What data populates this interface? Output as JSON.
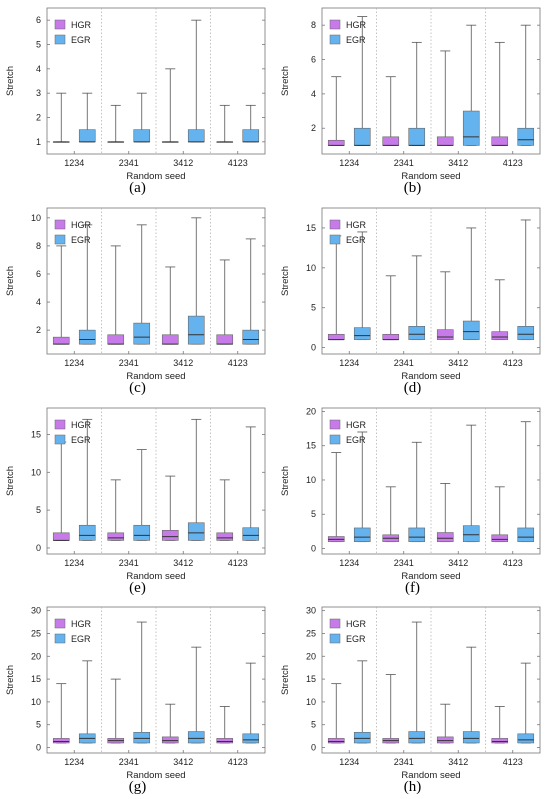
{
  "colors": {
    "HGR": "#c77be8",
    "EGR": "#65b3ee",
    "median": "#333333",
    "whisker": "#555555",
    "grid": "#aaaaaa"
  },
  "chart_data": [
    {
      "label": "(a)",
      "type": "boxplot",
      "xlabel": "Random seed",
      "ylabel": "Stretch",
      "categories": [
        "1234",
        "2341",
        "3412",
        "4123"
      ],
      "ylim": [
        0.5,
        6.5
      ],
      "yticks": [
        1,
        2,
        3,
        4,
        5,
        6
      ],
      "legend": "top-left",
      "grid": "vertical dotted",
      "series": [
        {
          "name": "HGR",
          "boxes": [
            {
              "min": 1,
              "q1": 1,
              "median": 1,
              "q3": 1,
              "max": 3
            },
            {
              "min": 1,
              "q1": 1,
              "median": 1,
              "q3": 1,
              "max": 2.5
            },
            {
              "min": 1,
              "q1": 1,
              "median": 1,
              "q3": 1,
              "max": 4
            },
            {
              "min": 1,
              "q1": 1,
              "median": 1,
              "q3": 1,
              "max": 2.5
            }
          ]
        },
        {
          "name": "EGR",
          "boxes": [
            {
              "min": 1,
              "q1": 1,
              "median": 1,
              "q3": 1.5,
              "max": 3
            },
            {
              "min": 1,
              "q1": 1,
              "median": 1,
              "q3": 1.5,
              "max": 3
            },
            {
              "min": 1,
              "q1": 1,
              "median": 1,
              "q3": 1.5,
              "max": 6
            },
            {
              "min": 1,
              "q1": 1,
              "median": 1,
              "q3": 1.5,
              "max": 2.5
            }
          ]
        }
      ]
    },
    {
      "label": "(b)",
      "type": "boxplot",
      "xlabel": "Random seed",
      "ylabel": "Stretch",
      "categories": [
        "1234",
        "2341",
        "3412",
        "4123"
      ],
      "ylim": [
        0.5,
        9
      ],
      "yticks": [
        2,
        4,
        6,
        8
      ],
      "legend": "top-left",
      "grid": "vertical dotted",
      "series": [
        {
          "name": "HGR",
          "boxes": [
            {
              "min": 1,
              "q1": 1,
              "median": 1,
              "q3": 1.3,
              "max": 5
            },
            {
              "min": 1,
              "q1": 1,
              "median": 1,
              "q3": 1.5,
              "max": 5
            },
            {
              "min": 1,
              "q1": 1,
              "median": 1,
              "q3": 1.5,
              "max": 6.5
            },
            {
              "min": 1,
              "q1": 1,
              "median": 1,
              "q3": 1.5,
              "max": 7
            }
          ]
        },
        {
          "name": "EGR",
          "boxes": [
            {
              "min": 1,
              "q1": 1,
              "median": 1,
              "q3": 2,
              "max": 8.5
            },
            {
              "min": 1,
              "q1": 1,
              "median": 1,
              "q3": 2,
              "max": 7
            },
            {
              "min": 1,
              "q1": 1,
              "median": 1.5,
              "q3": 3,
              "max": 8
            },
            {
              "min": 1,
              "q1": 1,
              "median": 1.33,
              "q3": 2,
              "max": 8
            }
          ]
        }
      ]
    },
    {
      "label": "(c)",
      "type": "boxplot",
      "xlabel": "Random seed",
      "ylabel": "Stretch",
      "categories": [
        "1234",
        "2341",
        "3412",
        "4123"
      ],
      "ylim": [
        0.3,
        10.7
      ],
      "yticks": [
        2,
        4,
        6,
        8,
        10
      ],
      "legend": "top-left",
      "grid": "vertical dotted",
      "series": [
        {
          "name": "HGR",
          "boxes": [
            {
              "min": 1,
              "q1": 1,
              "median": 1,
              "q3": 1.5,
              "max": 8
            },
            {
              "min": 1,
              "q1": 1,
              "median": 1,
              "q3": 1.67,
              "max": 8
            },
            {
              "min": 1,
              "q1": 1,
              "median": 1,
              "q3": 1.67,
              "max": 6.5
            },
            {
              "min": 1,
              "q1": 1,
              "median": 1,
              "q3": 1.67,
              "max": 7
            }
          ]
        },
        {
          "name": "EGR",
          "boxes": [
            {
              "min": 1,
              "q1": 1,
              "median": 1.33,
              "q3": 2,
              "max": 9.5
            },
            {
              "min": 1,
              "q1": 1,
              "median": 1.5,
              "q3": 2.5,
              "max": 9.5
            },
            {
              "min": 1,
              "q1": 1,
              "median": 1.67,
              "q3": 3,
              "max": 10
            },
            {
              "min": 1,
              "q1": 1,
              "median": 1.33,
              "q3": 2,
              "max": 8.5
            }
          ]
        }
      ]
    },
    {
      "label": "(d)",
      "type": "boxplot",
      "xlabel": "Random seed",
      "ylabel": "Stretch",
      "categories": [
        "1234",
        "2341",
        "3412",
        "4123"
      ],
      "ylim": [
        -0.8,
        17.5
      ],
      "yticks": [
        0,
        5,
        10,
        15
      ],
      "legend": "top-left",
      "grid": "vertical dotted",
      "series": [
        {
          "name": "HGR",
          "boxes": [
            {
              "min": 1,
              "q1": 1,
              "median": 1,
              "q3": 1.67,
              "max": 14
            },
            {
              "min": 1,
              "q1": 1,
              "median": 1,
              "q3": 1.67,
              "max": 9
            },
            {
              "min": 1,
              "q1": 1,
              "median": 1.33,
              "q3": 2.25,
              "max": 9.5
            },
            {
              "min": 1,
              "q1": 1,
              "median": 1.33,
              "q3": 2,
              "max": 8.5
            }
          ]
        },
        {
          "name": "EGR",
          "boxes": [
            {
              "min": 1,
              "q1": 1,
              "median": 1.5,
              "q3": 2.5,
              "max": 14.5
            },
            {
              "min": 1,
              "q1": 1,
              "median": 1.67,
              "q3": 2.67,
              "max": 11.5
            },
            {
              "min": 1,
              "q1": 1,
              "median": 2,
              "q3": 3.33,
              "max": 15
            },
            {
              "min": 1,
              "q1": 1,
              "median": 1.67,
              "q3": 2.67,
              "max": 16
            }
          ]
        }
      ]
    },
    {
      "label": "(e)",
      "type": "boxplot",
      "xlabel": "Random seed",
      "ylabel": "Stretch",
      "categories": [
        "1234",
        "2341",
        "3412",
        "4123"
      ],
      "ylim": [
        -0.8,
        18.5
      ],
      "yticks": [
        0,
        5,
        10,
        15
      ],
      "legend": "top-left",
      "grid": "vertical dotted",
      "series": [
        {
          "name": "HGR",
          "boxes": [
            {
              "min": 1,
              "q1": 1,
              "median": 1,
              "q3": 2,
              "max": 14
            },
            {
              "min": 1,
              "q1": 1,
              "median": 1.33,
              "q3": 2,
              "max": 9
            },
            {
              "min": 1,
              "q1": 1,
              "median": 1.5,
              "q3": 2.33,
              "max": 9.5
            },
            {
              "min": 1,
              "q1": 1,
              "median": 1.33,
              "q3": 2,
              "max": 9
            }
          ]
        },
        {
          "name": "EGR",
          "boxes": [
            {
              "min": 1,
              "q1": 1,
              "median": 1.67,
              "q3": 3,
              "max": 17
            },
            {
              "min": 1,
              "q1": 1,
              "median": 1.67,
              "q3": 3,
              "max": 13
            },
            {
              "min": 1,
              "q1": 1,
              "median": 2,
              "q3": 3.33,
              "max": 17
            },
            {
              "min": 1,
              "q1": 1,
              "median": 1.67,
              "q3": 2.67,
              "max": 16
            }
          ]
        }
      ]
    },
    {
      "label": "(f)",
      "type": "boxplot",
      "xlabel": "Random seed",
      "ylabel": "Stretch",
      "categories": [
        "1234",
        "2341",
        "3412",
        "4123"
      ],
      "ylim": [
        -0.8,
        20.5
      ],
      "yticks": [
        0,
        5,
        10,
        15,
        20
      ],
      "legend": "top-left",
      "grid": "vertical dotted",
      "series": [
        {
          "name": "HGR",
          "boxes": [
            {
              "min": 1,
              "q1": 1,
              "median": 1.33,
              "q3": 1.75,
              "max": 14
            },
            {
              "min": 1,
              "q1": 1,
              "median": 1.5,
              "q3": 2,
              "max": 9
            },
            {
              "min": 1,
              "q1": 1,
              "median": 1.5,
              "q3": 2.33,
              "max": 9.5
            },
            {
              "min": 1,
              "q1": 1,
              "median": 1.33,
              "q3": 2,
              "max": 9
            }
          ]
        },
        {
          "name": "EGR",
          "boxes": [
            {
              "min": 1,
              "q1": 1,
              "median": 1.67,
              "q3": 3,
              "max": 17
            },
            {
              "min": 1,
              "q1": 1,
              "median": 1.67,
              "q3": 3,
              "max": 15.5
            },
            {
              "min": 1,
              "q1": 1,
              "median": 2,
              "q3": 3.33,
              "max": 18
            },
            {
              "min": 1,
              "q1": 1,
              "median": 1.67,
              "q3": 3,
              "max": 18.5
            }
          ]
        }
      ]
    },
    {
      "label": "(g)",
      "type": "boxplot",
      "xlabel": "Random seed",
      "ylabel": "Stretch",
      "categories": [
        "1234",
        "2341",
        "3412",
        "4123"
      ],
      "ylim": [
        -1.2,
        30.8
      ],
      "yticks": [
        0,
        5,
        10,
        15,
        20,
        25,
        30
      ],
      "legend": "top-left",
      "grid": "vertical dotted",
      "series": [
        {
          "name": "HGR",
          "boxes": [
            {
              "min": 1,
              "q1": 1,
              "median": 1.33,
              "q3": 2,
              "max": 14
            },
            {
              "min": 1,
              "q1": 1,
              "median": 1.5,
              "q3": 2,
              "max": 15
            },
            {
              "min": 1,
              "q1": 1,
              "median": 1.5,
              "q3": 2.33,
              "max": 9.5
            },
            {
              "min": 1,
              "q1": 1,
              "median": 1.33,
              "q3": 2,
              "max": 9
            }
          ]
        },
        {
          "name": "EGR",
          "boxes": [
            {
              "min": 1,
              "q1": 1,
              "median": 2,
              "q3": 3,
              "max": 19
            },
            {
              "min": 1,
              "q1": 1,
              "median": 2,
              "q3": 3.33,
              "max": 27.5
            },
            {
              "min": 1,
              "q1": 1,
              "median": 2,
              "q3": 3.5,
              "max": 22
            },
            {
              "min": 1,
              "q1": 1,
              "median": 1.67,
              "q3": 3,
              "max": 18.5
            }
          ]
        }
      ]
    },
    {
      "label": "(h)",
      "type": "boxplot",
      "xlabel": "Random seed",
      "ylabel": "Stretch",
      "categories": [
        "1234",
        "2341",
        "3412",
        "4123"
      ],
      "ylim": [
        -1.2,
        30.8
      ],
      "yticks": [
        0,
        5,
        10,
        15,
        20,
        25,
        30
      ],
      "legend": "top-left",
      "grid": "vertical dotted",
      "series": [
        {
          "name": "HGR",
          "boxes": [
            {
              "min": 1,
              "q1": 1,
              "median": 1.33,
              "q3": 2,
              "max": 14
            },
            {
              "min": 1,
              "q1": 1,
              "median": 1.5,
              "q3": 2,
              "max": 16
            },
            {
              "min": 1,
              "q1": 1,
              "median": 1.5,
              "q3": 2.33,
              "max": 9.5
            },
            {
              "min": 1,
              "q1": 1,
              "median": 1.33,
              "q3": 2,
              "max": 9
            }
          ]
        },
        {
          "name": "EGR",
          "boxes": [
            {
              "min": 1,
              "q1": 1,
              "median": 2,
              "q3": 3.33,
              "max": 19
            },
            {
              "min": 1,
              "q1": 1,
              "median": 2,
              "q3": 3.5,
              "max": 27.5
            },
            {
              "min": 1,
              "q1": 1,
              "median": 2,
              "q3": 3.5,
              "max": 22
            },
            {
              "min": 1,
              "q1": 1,
              "median": 1.67,
              "q3": 3,
              "max": 18.5
            }
          ]
        }
      ]
    }
  ]
}
